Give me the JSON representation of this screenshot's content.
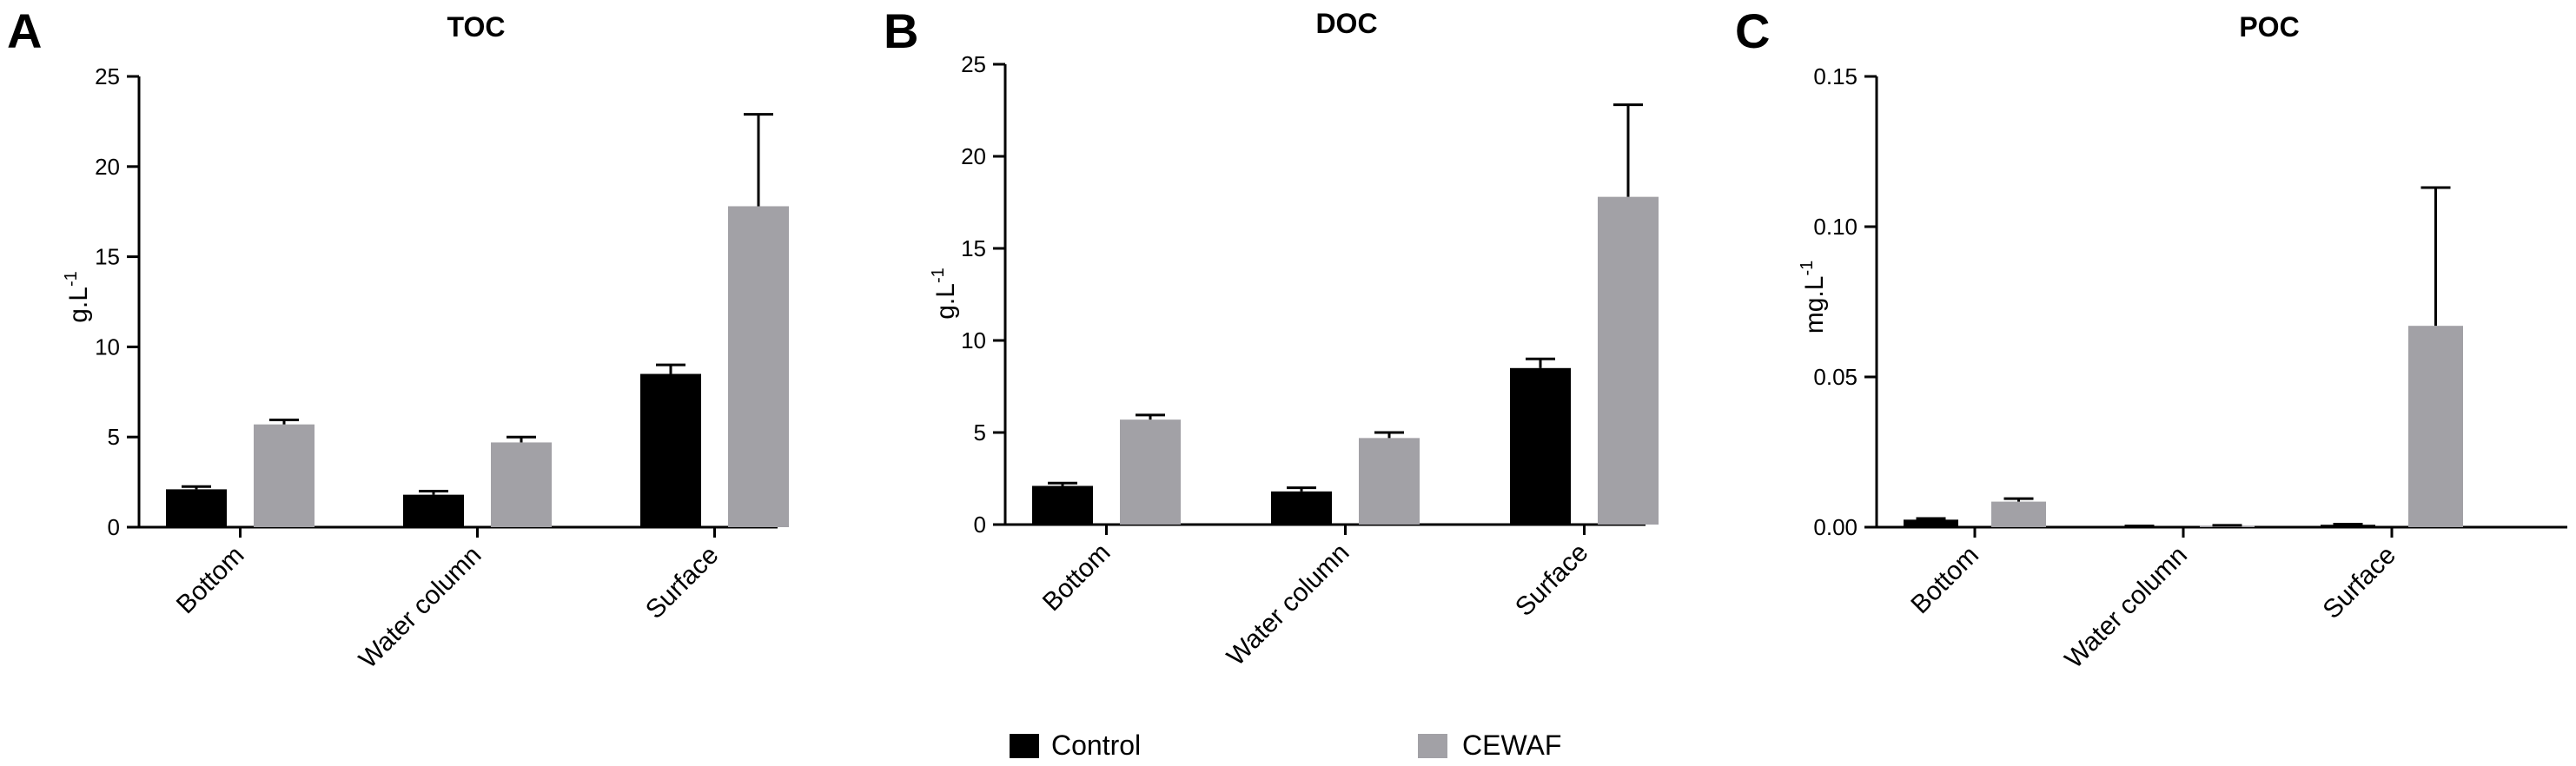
{
  "legend": {
    "items": [
      {
        "label": "Control",
        "color": "#000000"
      },
      {
        "label": "CEWAF",
        "color": "#a2a1a6"
      }
    ]
  },
  "chart_data": [
    {
      "panel": "A",
      "type": "bar",
      "title": "TOC",
      "ylabel_main": "g.L",
      "ylabel_sup": "-1",
      "categories": [
        "Bottom",
        "Water column",
        "Surface"
      ],
      "ylim": [
        0,
        25
      ],
      "yticks": [
        0,
        5,
        10,
        15,
        20,
        25
      ],
      "ytick_labels": [
        "0",
        "5",
        "10",
        "15",
        "20",
        "25"
      ],
      "series": [
        {
          "name": "Control",
          "color": "#000000",
          "values": [
            2.1,
            1.8,
            8.5
          ],
          "errors": [
            0.15,
            0.2,
            0.5
          ]
        },
        {
          "name": "CEWAF",
          "color": "#a2a1a6",
          "values": [
            5.7,
            4.7,
            17.8
          ],
          "errors": [
            0.25,
            0.3,
            5.1
          ]
        }
      ]
    },
    {
      "panel": "B",
      "type": "bar",
      "title": "DOC",
      "ylabel_main": "g.L",
      "ylabel_sup": "-1",
      "categories": [
        "Bottom",
        "Water column",
        "Surface"
      ],
      "ylim": [
        0,
        25
      ],
      "yticks": [
        0,
        5,
        10,
        15,
        20,
        25
      ],
      "ytick_labels": [
        "0",
        "5",
        "10",
        "15",
        "20",
        "25"
      ],
      "series": [
        {
          "name": "Control",
          "color": "#000000",
          "values": [
            2.1,
            1.8,
            8.5
          ],
          "errors": [
            0.15,
            0.2,
            0.5
          ]
        },
        {
          "name": "CEWAF",
          "color": "#a2a1a6",
          "values": [
            5.7,
            4.7,
            17.8
          ],
          "errors": [
            0.25,
            0.3,
            5.0
          ]
        }
      ]
    },
    {
      "panel": "C",
      "type": "bar",
      "title": "POC",
      "ylabel_main": "mg.L",
      "ylabel_sup": "-1",
      "categories": [
        "Bottom",
        "Water column",
        "Surface"
      ],
      "ylim": [
        0,
        0.15
      ],
      "yticks": [
        0,
        0.05,
        0.1,
        0.15
      ],
      "ytick_labels": [
        "0.00",
        "0.05",
        "0.10",
        "0.15"
      ],
      "series": [
        {
          "name": "Control",
          "color": "#000000",
          "values": [
            0.0025,
            0.0003,
            0.0008
          ],
          "errors": [
            0.0004,
            0.0001,
            0.0002
          ]
        },
        {
          "name": "CEWAF",
          "color": "#a2a1a6",
          "values": [
            0.0085,
            0.0005,
            0.067
          ],
          "errors": [
            0.001,
            0.0001,
            0.046
          ]
        }
      ]
    }
  ]
}
